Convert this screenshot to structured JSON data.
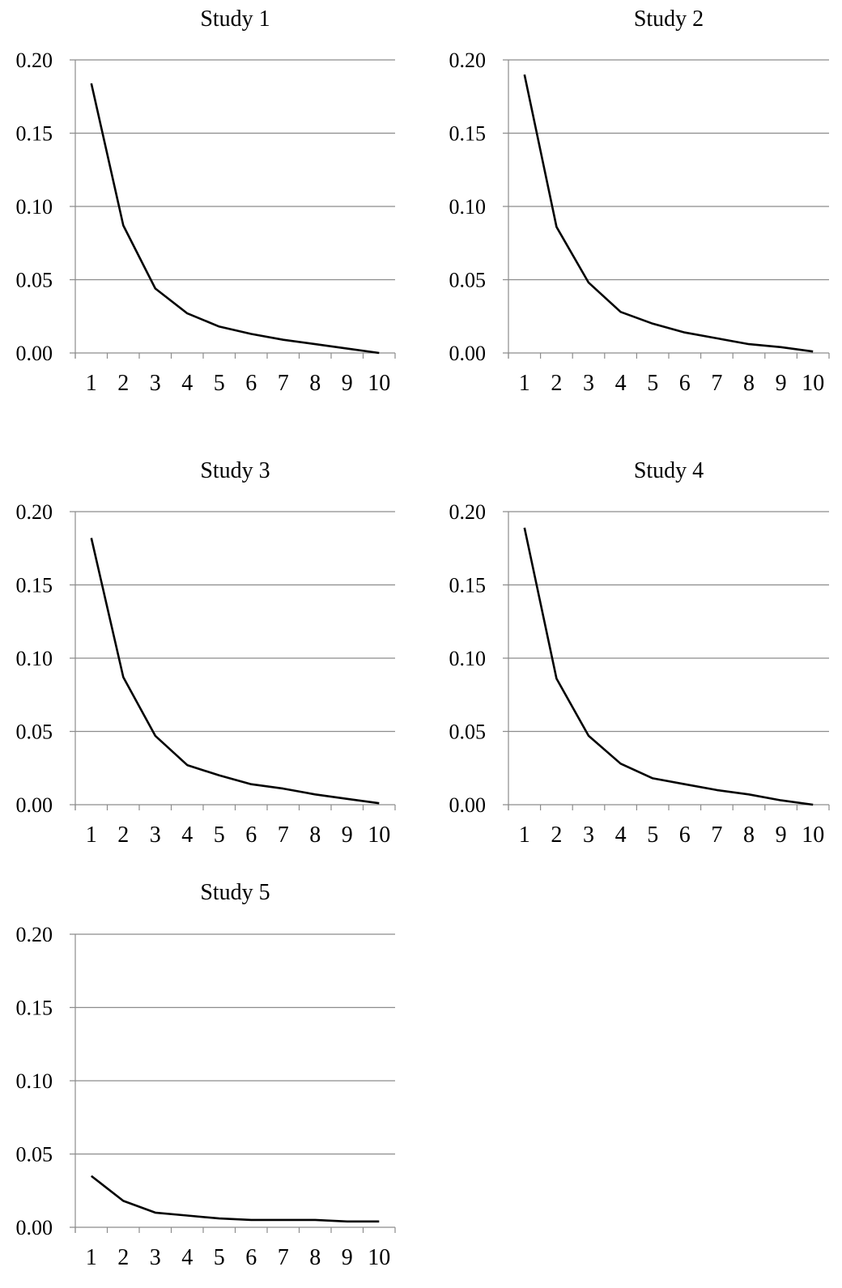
{
  "figure": {
    "panels": [
      {
        "title": "Study 1"
      },
      {
        "title": "Study 2"
      },
      {
        "title": "Study 3"
      },
      {
        "title": "Study 4"
      },
      {
        "title": "Study 5"
      }
    ]
  },
  "chart_data": [
    {
      "type": "line",
      "title": "Study 1",
      "xlabel": "",
      "ylabel": "",
      "x": [
        1,
        2,
        3,
        4,
        5,
        6,
        7,
        8,
        9,
        10
      ],
      "series": [
        {
          "values": [
            0.184,
            0.087,
            0.044,
            0.027,
            0.018,
            0.013,
            0.009,
            0.006,
            0.003,
            0.0
          ]
        }
      ],
      "ylim": [
        0,
        0.2
      ],
      "yticks": [
        "0.00",
        "0.05",
        "0.10",
        "0.15",
        "0.20"
      ],
      "xticks": [
        "1",
        "2",
        "3",
        "4",
        "5",
        "6",
        "7",
        "8",
        "9",
        "10"
      ],
      "grid": true,
      "line_color": "#000000",
      "grid_color": "#8c8c8c"
    },
    {
      "type": "line",
      "title": "Study 2",
      "xlabel": "",
      "ylabel": "",
      "x": [
        1,
        2,
        3,
        4,
        5,
        6,
        7,
        8,
        9,
        10
      ],
      "series": [
        {
          "values": [
            0.19,
            0.086,
            0.048,
            0.028,
            0.02,
            0.014,
            0.01,
            0.006,
            0.004,
            0.001
          ]
        }
      ],
      "ylim": [
        0,
        0.2
      ],
      "yticks": [
        "0.00",
        "0.05",
        "0.10",
        "0.15",
        "0.20"
      ],
      "xticks": [
        "1",
        "2",
        "3",
        "4",
        "5",
        "6",
        "7",
        "8",
        "9",
        "10"
      ],
      "grid": true,
      "line_color": "#000000",
      "grid_color": "#8c8c8c"
    },
    {
      "type": "line",
      "title": "Study 3",
      "xlabel": "",
      "ylabel": "",
      "x": [
        1,
        2,
        3,
        4,
        5,
        6,
        7,
        8,
        9,
        10
      ],
      "series": [
        {
          "values": [
            0.182,
            0.087,
            0.047,
            0.027,
            0.02,
            0.014,
            0.011,
            0.007,
            0.004,
            0.001
          ]
        }
      ],
      "ylim": [
        0,
        0.2
      ],
      "yticks": [
        "0.00",
        "0.05",
        "0.10",
        "0.15",
        "0.20"
      ],
      "xticks": [
        "1",
        "2",
        "3",
        "4",
        "5",
        "6",
        "7",
        "8",
        "9",
        "10"
      ],
      "grid": true,
      "line_color": "#000000",
      "grid_color": "#8c8c8c"
    },
    {
      "type": "line",
      "title": "Study 4",
      "xlabel": "",
      "ylabel": "",
      "x": [
        1,
        2,
        3,
        4,
        5,
        6,
        7,
        8,
        9,
        10
      ],
      "series": [
        {
          "values": [
            0.189,
            0.086,
            0.047,
            0.028,
            0.018,
            0.014,
            0.01,
            0.007,
            0.003,
            0.0
          ]
        }
      ],
      "ylim": [
        0,
        0.2
      ],
      "yticks": [
        "0.00",
        "0.05",
        "0.10",
        "0.15",
        "0.20"
      ],
      "xticks": [
        "1",
        "2",
        "3",
        "4",
        "5",
        "6",
        "7",
        "8",
        "9",
        "10"
      ],
      "grid": true,
      "line_color": "#000000",
      "grid_color": "#8c8c8c"
    },
    {
      "type": "line",
      "title": "Study 5",
      "xlabel": "",
      "ylabel": "",
      "x": [
        1,
        2,
        3,
        4,
        5,
        6,
        7,
        8,
        9,
        10
      ],
      "series": [
        {
          "values": [
            0.035,
            0.018,
            0.01,
            0.008,
            0.006,
            0.005,
            0.005,
            0.005,
            0.004,
            0.004
          ]
        }
      ],
      "ylim": [
        0,
        0.2
      ],
      "yticks": [
        "0.00",
        "0.05",
        "0.10",
        "0.15",
        "0.20"
      ],
      "xticks": [
        "1",
        "2",
        "3",
        "4",
        "5",
        "6",
        "7",
        "8",
        "9",
        "10"
      ],
      "grid": true,
      "line_color": "#000000",
      "grid_color": "#8c8c8c"
    }
  ]
}
